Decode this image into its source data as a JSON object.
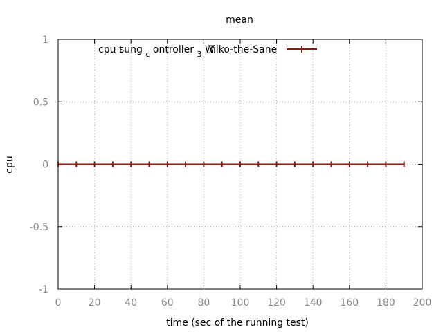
{
  "chart_data": {
    "type": "line",
    "title": "mean",
    "xlabel": "time (sec of the running test)",
    "ylabel": "cpu",
    "xlim": [
      0,
      200
    ],
    "ylim": [
      -1,
      1
    ],
    "xticks": [
      "0",
      "20",
      "40",
      "60",
      "80",
      "100",
      "120",
      "140",
      "160",
      "180",
      "200"
    ],
    "yticks": [
      "1",
      "0.5",
      "0",
      "-0.5",
      "-1"
    ],
    "grid": true,
    "legend_position": "top-right",
    "series": [
      {
        "name_parts": {
          "lead": "cpu t",
          "seg1": "sung",
          "sub1": "c",
          "seg2": "ontroller",
          "sub2": "3",
          "seg3": "7",
          "overlap": "W",
          "tail": "ilko-the-Sane"
        },
        "color": "#8b1a0e",
        "x": [
          0,
          10,
          20,
          30,
          40,
          50,
          60,
          70,
          80,
          90,
          100,
          110,
          120,
          130,
          140,
          150,
          160,
          170,
          180,
          190
        ],
        "y": [
          0,
          0,
          0,
          0,
          0,
          0,
          0,
          0,
          0,
          0,
          0,
          0,
          0,
          0,
          0,
          0,
          0,
          0,
          0,
          0
        ]
      }
    ]
  }
}
